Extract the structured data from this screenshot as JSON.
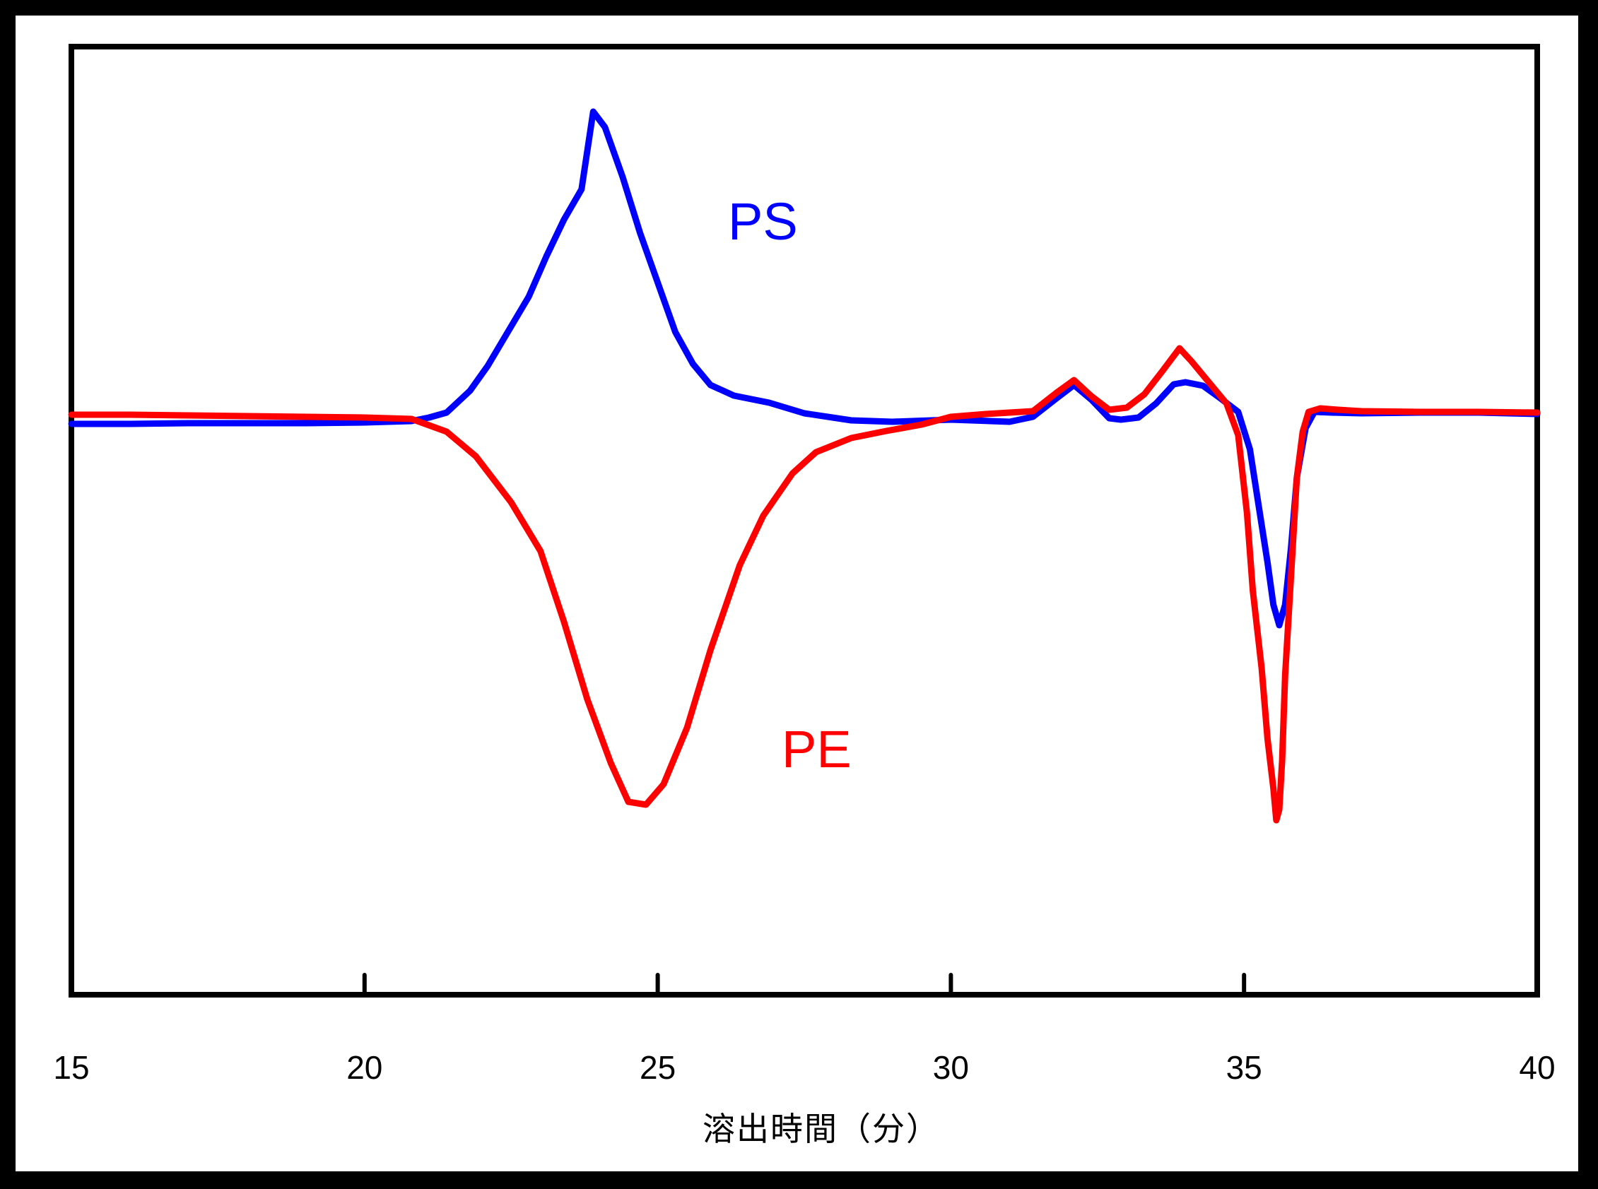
{
  "chart_data": {
    "type": "line",
    "title": "",
    "xlabel": "溶出時間（分）",
    "ylabel": "",
    "xlim": [
      15,
      40
    ],
    "xticks": [
      15,
      20,
      25,
      30,
      35,
      40
    ],
    "xtick_labels": [
      "15",
      "20",
      "25",
      "30",
      "35",
      "40"
    ],
    "yticks": [],
    "grid": false,
    "legend": "none (inline series labels)",
    "annotations": [
      {
        "text": "PS",
        "color": "#0000FF",
        "x": 26.4,
        "y_signal": 31
      },
      {
        "text": "PE",
        "color": "#FF0000",
        "x": 27.0,
        "y_signal": -46
      }
    ],
    "series": [
      {
        "name": "PS",
        "color": "#0000FF",
        "x": [
          15.0,
          16.0,
          17.0,
          18.0,
          19.0,
          20.0,
          20.8,
          21.1,
          21.4,
          21.8,
          22.1,
          22.4,
          22.8,
          23.1,
          23.4,
          23.7,
          23.9,
          24.1,
          24.4,
          24.7,
          25.0,
          25.3,
          25.6,
          25.9,
          26.3,
          26.9,
          27.5,
          28.3,
          29.0,
          30.0,
          31.0,
          31.4,
          31.8,
          32.1,
          32.4,
          32.7,
          32.9,
          33.2,
          33.5,
          33.8,
          34.0,
          34.3,
          34.6,
          34.9,
          35.1,
          35.25,
          35.4,
          35.5,
          35.6,
          35.7,
          35.8,
          35.9,
          36.05,
          36.2,
          36.5,
          37.0,
          38.0,
          39.0,
          40.0
        ],
        "y": [
          -0.4,
          -0.4,
          -0.3,
          -0.3,
          -0.3,
          -0.2,
          0.0,
          0.5,
          1.2,
          4.3,
          7.8,
          12.0,
          17.6,
          23.3,
          28.5,
          32.8,
          43.8,
          41.6,
          34.6,
          26.6,
          19.6,
          12.6,
          8.1,
          5.1,
          3.6,
          2.6,
          1.1,
          0.1,
          -0.1,
          0.2,
          -0.1,
          0.6,
          3.2,
          5.1,
          3.0,
          0.4,
          0.2,
          0.5,
          2.5,
          5.2,
          5.5,
          5.0,
          3.2,
          1.3,
          -4.0,
          -12.0,
          -20.0,
          -26.0,
          -28.9,
          -26.0,
          -18.0,
          -8.0,
          -1.0,
          1.3,
          1.2,
          1.1,
          1.2,
          1.2,
          1.0
        ]
      },
      {
        "name": "PE",
        "color": "#FF0000",
        "x": [
          15.0,
          16.0,
          17.0,
          18.0,
          19.0,
          20.0,
          20.8,
          21.4,
          21.9,
          22.5,
          23.0,
          23.4,
          23.8,
          24.2,
          24.5,
          24.8,
          25.1,
          25.5,
          25.9,
          26.4,
          26.8,
          27.3,
          27.7,
          28.3,
          28.9,
          29.5,
          30.0,
          30.6,
          31.0,
          31.4,
          31.8,
          32.1,
          32.4,
          32.7,
          33.0,
          33.3,
          33.6,
          33.9,
          34.1,
          34.4,
          34.7,
          34.9,
          35.05,
          35.15,
          35.3,
          35.4,
          35.5,
          35.55,
          35.6,
          35.65,
          35.7,
          35.8,
          35.9,
          36.0,
          36.1,
          36.3,
          36.6,
          37.0,
          38.0,
          39.0,
          40.0
        ],
        "y": [
          0.9,
          0.9,
          0.8,
          0.7,
          0.6,
          0.5,
          0.3,
          -1.5,
          -5.0,
          -11.5,
          -18.4,
          -28.4,
          -39.4,
          -48.4,
          -53.9,
          -54.3,
          -51.4,
          -43.4,
          -32.4,
          -20.4,
          -13.4,
          -7.4,
          -4.4,
          -2.4,
          -1.4,
          -0.5,
          0.6,
          1.0,
          1.2,
          1.4,
          4.0,
          5.8,
          3.5,
          1.6,
          1.9,
          3.8,
          7.0,
          10.3,
          8.5,
          5.5,
          2.5,
          -2.0,
          -13.0,
          -24.0,
          -35.0,
          -45.0,
          -52.0,
          -56.5,
          -55.0,
          -48.0,
          -36.0,
          -22.0,
          -8.0,
          -1.5,
          1.3,
          1.8,
          1.6,
          1.4,
          1.3,
          1.3,
          1.2
        ]
      }
    ]
  },
  "axis": {
    "xlabel": "溶出時間（分）",
    "ticks": [
      "15",
      "20",
      "25",
      "30",
      "35",
      "40"
    ]
  },
  "labels": {
    "ps": "PS",
    "pe": "PE"
  },
  "colors": {
    "ps": "#0000FF",
    "pe": "#FF0000",
    "frame": "#000000",
    "background": "#FFFFFF"
  }
}
